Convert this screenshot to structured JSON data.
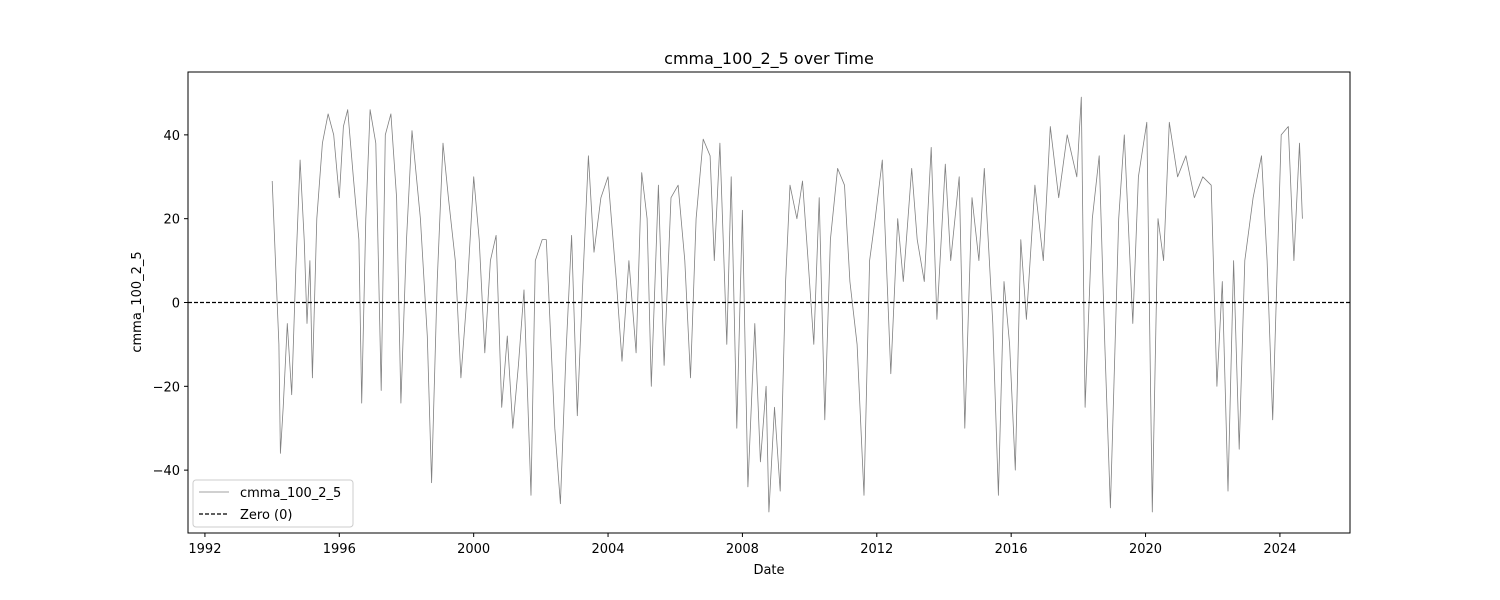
{
  "chart_data": {
    "type": "line",
    "title": "cmma_100_2_5 over Time",
    "xlabel": "Date",
    "ylabel": "cmma_100_2_5",
    "x_type": "date",
    "xlim": [
      "1991-07-01",
      "2026-02-01"
    ],
    "ylim": [
      -55,
      55
    ],
    "x_ticks": [
      "1992",
      "1996",
      "2000",
      "2004",
      "2008",
      "2012",
      "2016",
      "2020",
      "2024"
    ],
    "y_ticks": [
      -40,
      -20,
      0,
      20,
      40
    ],
    "grid": false,
    "legend": {
      "position": "lower-left",
      "entries": [
        "cmma_100_2_5",
        "Zero (0)"
      ]
    },
    "series": [
      {
        "name": "cmma_100_2_5",
        "color": "#808080",
        "style": "solid",
        "points": [
          [
            "1994-01-01",
            29
          ],
          [
            "1994-02-15",
            5
          ],
          [
            "1994-03-15",
            -10
          ],
          [
            "1994-04-01",
            -36
          ],
          [
            "1994-05-01",
            -25
          ],
          [
            "1994-06-15",
            -5
          ],
          [
            "1994-08-01",
            -22
          ],
          [
            "1994-09-15",
            8
          ],
          [
            "1994-11-01",
            34
          ],
          [
            "1994-12-15",
            15
          ],
          [
            "1995-01-15",
            -5
          ],
          [
            "1995-02-15",
            10
          ],
          [
            "1995-03-15",
            -18
          ],
          [
            "1995-05-01",
            20
          ],
          [
            "1995-07-01",
            38
          ],
          [
            "1995-09-01",
            45
          ],
          [
            "1995-11-01",
            40
          ],
          [
            "1996-01-01",
            25
          ],
          [
            "1996-02-15",
            42
          ],
          [
            "1996-04-01",
            46
          ],
          [
            "1996-06-01",
            30
          ],
          [
            "1996-08-01",
            15
          ],
          [
            "1996-09-01",
            -24
          ],
          [
            "1996-10-15",
            20
          ],
          [
            "1996-12-01",
            46
          ],
          [
            "1997-02-01",
            38
          ],
          [
            "1997-04-01",
            -21
          ],
          [
            "1997-05-15",
            40
          ],
          [
            "1997-07-15",
            45
          ],
          [
            "1997-09-15",
            25
          ],
          [
            "1997-11-01",
            -24
          ],
          [
            "1998-01-01",
            15
          ],
          [
            "1998-03-01",
            41
          ],
          [
            "1998-06-01",
            20
          ],
          [
            "1998-08-15",
            -8
          ],
          [
            "1998-10-01",
            -43
          ],
          [
            "1998-12-01",
            5
          ],
          [
            "1999-02-01",
            38
          ],
          [
            "1999-04-01",
            25
          ],
          [
            "1999-06-15",
            10
          ],
          [
            "1999-08-15",
            -18
          ],
          [
            "1999-10-15",
            0
          ],
          [
            "2000-01-01",
            30
          ],
          [
            "2000-03-01",
            15
          ],
          [
            "2000-05-01",
            -12
          ],
          [
            "2000-07-01",
            10
          ],
          [
            "2000-09-01",
            16
          ],
          [
            "2000-11-01",
            -25
          ],
          [
            "2001-01-01",
            -8
          ],
          [
            "2001-03-01",
            -30
          ],
          [
            "2001-05-01",
            -15
          ],
          [
            "2001-07-01",
            3
          ],
          [
            "2001-09-15",
            -46
          ],
          [
            "2001-11-01",
            10
          ],
          [
            "2002-01-15",
            15
          ],
          [
            "2002-03-01",
            15
          ],
          [
            "2002-06-01",
            -30
          ],
          [
            "2002-08-01",
            -48
          ],
          [
            "2002-10-01",
            -12
          ],
          [
            "2002-12-01",
            16
          ],
          [
            "2003-02-01",
            -27
          ],
          [
            "2003-04-01",
            5
          ],
          [
            "2003-06-01",
            35
          ],
          [
            "2003-08-01",
            12
          ],
          [
            "2003-10-15",
            25
          ],
          [
            "2004-01-01",
            30
          ],
          [
            "2004-04-01",
            5
          ],
          [
            "2004-06-01",
            -14
          ],
          [
            "2004-08-15",
            10
          ],
          [
            "2004-11-01",
            -12
          ],
          [
            "2005-01-01",
            31
          ],
          [
            "2005-03-01",
            20
          ],
          [
            "2005-04-15",
            -20
          ],
          [
            "2005-07-01",
            28
          ],
          [
            "2005-09-01",
            -15
          ],
          [
            "2005-11-15",
            25
          ],
          [
            "2006-02-01",
            28
          ],
          [
            "2006-04-15",
            10
          ],
          [
            "2006-06-15",
            -18
          ],
          [
            "2006-08-15",
            20
          ],
          [
            "2006-11-01",
            39
          ],
          [
            "2007-01-15",
            35
          ],
          [
            "2007-03-01",
            10
          ],
          [
            "2007-05-01",
            38
          ],
          [
            "2007-07-15",
            -10
          ],
          [
            "2007-09-01",
            30
          ],
          [
            "2007-11-01",
            -30
          ],
          [
            "2008-01-01",
            22
          ],
          [
            "2008-03-01",
            -44
          ],
          [
            "2008-05-15",
            -5
          ],
          [
            "2008-07-15",
            -38
          ],
          [
            "2008-09-15",
            -20
          ],
          [
            "2008-10-15",
            -50
          ],
          [
            "2008-12-15",
            -25
          ],
          [
            "2009-02-15",
            -45
          ],
          [
            "2009-04-15",
            5
          ],
          [
            "2009-06-01",
            28
          ],
          [
            "2009-08-15",
            20
          ],
          [
            "2009-10-15",
            29
          ],
          [
            "2009-12-15",
            10
          ],
          [
            "2010-02-15",
            -10
          ],
          [
            "2010-04-15",
            25
          ],
          [
            "2010-06-15",
            -28
          ],
          [
            "2010-08-15",
            15
          ],
          [
            "2010-11-01",
            32
          ],
          [
            "2011-01-15",
            28
          ],
          [
            "2011-03-15",
            5
          ],
          [
            "2011-06-01",
            -10
          ],
          [
            "2011-08-15",
            -46
          ],
          [
            "2011-10-15",
            10
          ],
          [
            "2011-12-15",
            20
          ],
          [
            "2012-03-01",
            34
          ],
          [
            "2012-06-01",
            -17
          ],
          [
            "2012-08-15",
            20
          ],
          [
            "2012-10-15",
            5
          ],
          [
            "2013-01-15",
            32
          ],
          [
            "2013-03-15",
            15
          ],
          [
            "2013-06-01",
            5
          ],
          [
            "2013-08-15",
            37
          ],
          [
            "2013-10-15",
            -4
          ],
          [
            "2014-01-15",
            33
          ],
          [
            "2014-03-15",
            10
          ],
          [
            "2014-06-15",
            30
          ],
          [
            "2014-08-15",
            -30
          ],
          [
            "2014-11-01",
            25
          ],
          [
            "2015-01-15",
            10
          ],
          [
            "2015-03-15",
            32
          ],
          [
            "2015-06-15",
            -5
          ],
          [
            "2015-08-15",
            -46
          ],
          [
            "2015-10-15",
            5
          ],
          [
            "2015-12-15",
            -10
          ],
          [
            "2016-02-15",
            -40
          ],
          [
            "2016-04-15",
            15
          ],
          [
            "2016-06-15",
            -4
          ],
          [
            "2016-09-15",
            28
          ],
          [
            "2016-12-15",
            10
          ],
          [
            "2017-03-01",
            42
          ],
          [
            "2017-06-01",
            25
          ],
          [
            "2017-09-01",
            40
          ],
          [
            "2017-12-15",
            30
          ],
          [
            "2018-02-01",
            49
          ],
          [
            "2018-03-15",
            -25
          ],
          [
            "2018-06-01",
            20
          ],
          [
            "2018-08-15",
            35
          ],
          [
            "2018-10-15",
            -10
          ],
          [
            "2018-12-15",
            -49
          ],
          [
            "2019-03-15",
            20
          ],
          [
            "2019-05-15",
            40
          ],
          [
            "2019-08-15",
            -5
          ],
          [
            "2019-10-15",
            30
          ],
          [
            "2020-01-15",
            43
          ],
          [
            "2020-03-15",
            -50
          ],
          [
            "2020-05-15",
            20
          ],
          [
            "2020-07-15",
            10
          ],
          [
            "2020-09-15",
            43
          ],
          [
            "2020-12-15",
            30
          ],
          [
            "2021-03-15",
            35
          ],
          [
            "2021-06-15",
            25
          ],
          [
            "2021-09-15",
            30
          ],
          [
            "2021-12-15",
            28
          ],
          [
            "2022-02-15",
            -20
          ],
          [
            "2022-04-15",
            5
          ],
          [
            "2022-06-15",
            -45
          ],
          [
            "2022-08-15",
            10
          ],
          [
            "2022-10-15",
            -35
          ],
          [
            "2022-12-15",
            10
          ],
          [
            "2023-03-15",
            25
          ],
          [
            "2023-06-15",
            35
          ],
          [
            "2023-08-15",
            10
          ],
          [
            "2023-10-15",
            -28
          ],
          [
            "2024-01-15",
            40
          ],
          [
            "2024-04-01",
            42
          ],
          [
            "2024-06-01",
            10
          ],
          [
            "2024-08-01",
            38
          ],
          [
            "2024-09-01",
            20
          ]
        ]
      },
      {
        "name": "Zero (0)",
        "color": "#000000",
        "style": "dashed",
        "y": 0
      }
    ]
  }
}
